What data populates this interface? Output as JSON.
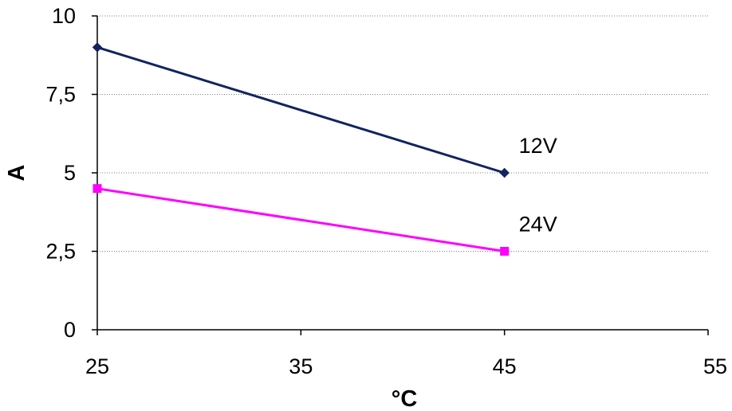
{
  "chart_data": {
    "type": "line",
    "title": "",
    "xlabel": "°C",
    "ylabel": "A",
    "xlim": [
      25,
      55
    ],
    "ylim": [
      0,
      10
    ],
    "x_ticks": [
      25,
      35,
      45,
      55
    ],
    "x_tick_labels": [
      "25",
      "35",
      "45",
      "55"
    ],
    "y_ticks": [
      0,
      2.5,
      5,
      7.5,
      10
    ],
    "y_tick_labels": [
      "0",
      "2,5",
      "5",
      "7,5",
      "10"
    ],
    "grid": "horizontal",
    "legend": "none",
    "series": [
      {
        "name": "12V",
        "color": "#12235f",
        "marker": "diamond",
        "points": [
          {
            "x": 25,
            "y": 9
          },
          {
            "x": 45,
            "y": 5
          }
        ]
      },
      {
        "name": "24V",
        "color": "#ff00ff",
        "marker": "square",
        "points": [
          {
            "x": 25,
            "y": 4.5
          },
          {
            "x": 45,
            "y": 2.5
          }
        ]
      }
    ]
  }
}
